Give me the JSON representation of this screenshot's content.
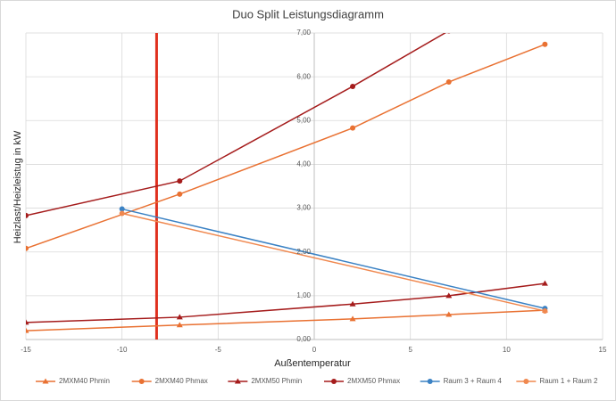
{
  "chart_data": {
    "type": "line",
    "title": "Duo Split Leistungsdiagramm",
    "x_label": "Außentemperatur",
    "y_label": "Heizlast/Heizleistug in kW",
    "xlim": [
      -15,
      15
    ],
    "xticks": [
      -15,
      -10,
      -5,
      0,
      5,
      10,
      15
    ],
    "ylim": [
      0,
      7
    ],
    "yticks": [
      {
        "value": 0,
        "label": "0,00"
      },
      {
        "value": 1,
        "label": "1,00"
      },
      {
        "value": 2,
        "label": "2,00"
      },
      {
        "value": 3,
        "label": "3,00"
      },
      {
        "value": 4,
        "label": "4,00"
      },
      {
        "value": 5,
        "label": "5,00"
      },
      {
        "value": 6,
        "label": "6,00"
      },
      {
        "value": 7,
        "label": "7,00"
      }
    ],
    "grid": true,
    "legend": "bottom",
    "vline": {
      "x": -8.2,
      "color": "#e0301e"
    },
    "series": [
      {
        "name": "2MXM40 Phmin",
        "color": "#e97132",
        "marker": "triangle",
        "x": [
          -15,
          -7,
          2,
          7,
          12
        ],
        "values": [
          0.2,
          0.33,
          0.47,
          0.57,
          0.67
        ]
      },
      {
        "name": "2MXM40 Phmax",
        "color": "#e97132",
        "marker": "circle",
        "x": [
          -15,
          -7,
          2,
          7,
          12
        ],
        "values": [
          2.08,
          3.32,
          4.83,
          5.88,
          6.74
        ]
      },
      {
        "name": "2MXM50 Phmin",
        "color": "#a51c1c",
        "marker": "triangle",
        "x": [
          -15,
          -7,
          2,
          7,
          12
        ],
        "values": [
          0.39,
          0.51,
          0.81,
          1.0,
          1.28
        ]
      },
      {
        "name": "2MXM50 Phmax",
        "color": "#a51c1c",
        "marker": "circle",
        "x": [
          -15,
          -7,
          2,
          7
        ],
        "values": [
          2.83,
          3.62,
          5.78,
          7.05
        ]
      },
      {
        "name": "Raum 3 + Raum 4",
        "color": "#3b82c4",
        "marker": "circle",
        "x": [
          -10,
          12
        ],
        "values": [
          2.98,
          0.71
        ]
      },
      {
        "name": "Raum 1 + Raum 2",
        "color": "#f0884f",
        "marker": "circle",
        "x": [
          -10,
          12
        ],
        "values": [
          2.88,
          0.65
        ]
      }
    ]
  }
}
